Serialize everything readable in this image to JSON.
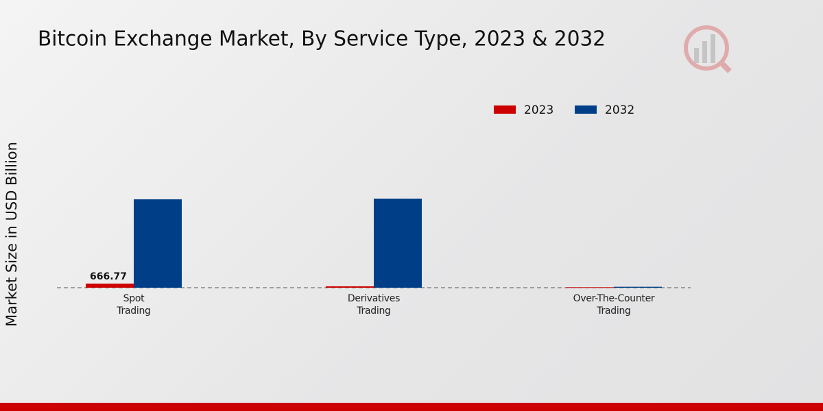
{
  "chart_data": {
    "type": "bar",
    "title": "Bitcoin Exchange Market, By Service Type, 2023 & 2032",
    "y_label": "Market Size in USD Billion",
    "categories": [
      "Spot\nTrading",
      "Derivatives\nTrading",
      "Over-The-Counter\nTrading"
    ],
    "series": [
      {
        "name": "2023",
        "color": "#cc0000",
        "values": [
          666.77,
          220,
          80
        ],
        "value_labels": [
          "666.77",
          null,
          null
        ]
      },
      {
        "name": "2032",
        "color": "#003f87",
        "values": [
          14335,
          14450,
          150
        ]
      }
    ],
    "ylim": [
      0,
      20000
    ]
  }
}
